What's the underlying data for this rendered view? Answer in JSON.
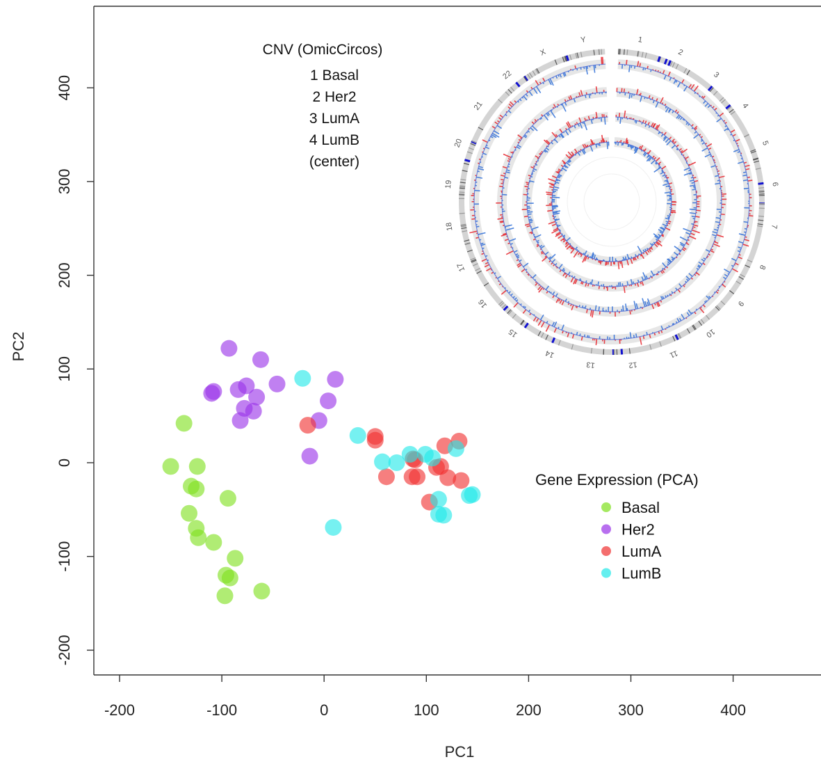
{
  "chart_data": [
    {
      "type": "scatter",
      "title": "",
      "xlabel": "PC1",
      "ylabel": "PC2",
      "xlim": [
        -228,
        482
      ],
      "ylim": [
        -228,
        488
      ],
      "xticks": [
        -200,
        -100,
        0,
        100,
        200,
        300,
        400
      ],
      "yticks": [
        -200,
        -100,
        0,
        100,
        200,
        300,
        400
      ],
      "grid": false,
      "legend": {
        "title": "Gene Expression (PCA)",
        "placement": "right"
      },
      "series": [
        {
          "name": "Basal",
          "color": "#7FE01E",
          "points": [
            [
              -137,
              42
            ],
            [
              -150,
              -4
            ],
            [
              -124,
              -4
            ],
            [
              -130,
              -25
            ],
            [
              -125,
              -28
            ],
            [
              -132,
              -54
            ],
            [
              -125,
              -70
            ],
            [
              -123,
              -80
            ],
            [
              -108,
              -85
            ],
            [
              -94,
              -38
            ],
            [
              -87,
              -102
            ],
            [
              -96,
              -120
            ],
            [
              -92,
              -123
            ],
            [
              -97,
              -142
            ],
            [
              -61,
              -137
            ]
          ]
        },
        {
          "name": "Her2",
          "color": "#9A32E8",
          "points": [
            [
              -93,
              122
            ],
            [
              -62,
              110
            ],
            [
              -108,
              76
            ],
            [
              -110,
              74
            ],
            [
              -84,
              78
            ],
            [
              -76,
              82
            ],
            [
              -78,
              58
            ],
            [
              -66,
              70
            ],
            [
              -46,
              84
            ],
            [
              -69,
              55
            ],
            [
              -82,
              45
            ],
            [
              11,
              89
            ],
            [
              4,
              66
            ],
            [
              -5,
              45
            ],
            [
              -14,
              7
            ]
          ]
        },
        {
          "name": "LumA",
          "color": "#F03030",
          "points": [
            [
              -16,
              40
            ],
            [
              50,
              28
            ],
            [
              50,
              24
            ],
            [
              61,
              -15
            ],
            [
              87,
              4
            ],
            [
              89,
              3
            ],
            [
              86,
              -15
            ],
            [
              91,
              -15
            ],
            [
              103,
              -42
            ],
            [
              110,
              -5
            ],
            [
              114,
              -4
            ],
            [
              118,
              18
            ],
            [
              132,
              23
            ],
            [
              121,
              -16
            ],
            [
              134,
              -19
            ]
          ]
        },
        {
          "name": "LumB",
          "color": "#22E8E8",
          "points": [
            [
              -21,
              90
            ],
            [
              33,
              29
            ],
            [
              57,
              1
            ],
            [
              71,
              0
            ],
            [
              84,
              9
            ],
            [
              99,
              9
            ],
            [
              106,
              5
            ],
            [
              112,
              -39
            ],
            [
              112,
              -55
            ],
            [
              117,
              -56
            ],
            [
              129,
              15
            ],
            [
              145,
              -34
            ],
            [
              142,
              -35
            ],
            [
              9,
              -69
            ]
          ]
        }
      ]
    },
    {
      "type": "circos",
      "title": "CNV (OmicCircos)",
      "ring_labels": [
        "1 Basal",
        "2 Her2",
        "3 LumA",
        "4 LumB",
        "(center)"
      ],
      "chromosomes": [
        "1",
        "2",
        "3",
        "4",
        "5",
        "6",
        "7",
        "8",
        "9",
        "10",
        "11",
        "12",
        "13",
        "14",
        "15",
        "16",
        "17",
        "18",
        "19",
        "20",
        "21",
        "22",
        "X",
        "Y"
      ],
      "track_colors": {
        "gain": "#E8222A",
        "loss": "#2F6FD8",
        "cytoband_marker": "#1010D0"
      }
    }
  ]
}
